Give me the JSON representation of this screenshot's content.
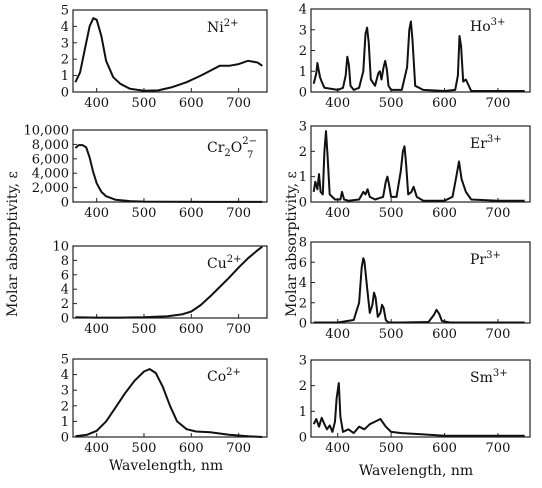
{
  "figure": {
    "left_ylabel": "Molar absorptivity, ε",
    "right_ylabel": "Molar absorptivity, ε",
    "left_xlabel": "Wavelength, nm",
    "right_xlabel": "Wavelength, nm"
  },
  "chart_data": [
    {
      "type": "line",
      "column": "left",
      "row": 0,
      "label": "Ni",
      "label_sup": "2+",
      "xlim": [
        350,
        760
      ],
      "ylim": [
        0,
        5
      ],
      "xticks": [
        400,
        500,
        600,
        700
      ],
      "yticks": [
        0,
        1,
        2,
        3,
        4,
        5
      ],
      "ytick_labels": [
        "0",
        "1",
        "2",
        "3",
        "4",
        "5"
      ],
      "show_xtick_labels": true,
      "x": [
        355,
        365,
        375,
        385,
        393,
        400,
        410,
        420,
        435,
        450,
        470,
        500,
        530,
        560,
        590,
        620,
        640,
        660,
        680,
        700,
        720,
        740,
        750
      ],
      "y": [
        0.6,
        1.2,
        2.6,
        4.0,
        4.5,
        4.4,
        3.4,
        1.9,
        0.9,
        0.5,
        0.2,
        0.08,
        0.1,
        0.3,
        0.6,
        1.0,
        1.3,
        1.6,
        1.6,
        1.7,
        1.9,
        1.8,
        1.6
      ]
    },
    {
      "type": "line",
      "column": "left",
      "row": 1,
      "label": "Cr",
      "label_sub1": "2",
      "label_mid": "O",
      "label_sup": "2−",
      "label_sub2": "7",
      "xlim": [
        350,
        760
      ],
      "ylim": [
        0,
        10000
      ],
      "xticks": [
        400,
        500,
        600,
        700
      ],
      "yticks": [
        0,
        2000,
        4000,
        6000,
        8000,
        10000
      ],
      "ytick_labels": [
        "0",
        "2,000",
        "4,000",
        "6,000",
        "8,000",
        "10,000"
      ],
      "show_xtick_labels": true,
      "x": [
        355,
        362,
        370,
        378,
        385,
        392,
        400,
        410,
        420,
        440,
        470,
        500,
        560,
        650,
        750
      ],
      "y": [
        7500,
        7900,
        7900,
        7600,
        6200,
        4300,
        2600,
        1400,
        800,
        300,
        120,
        50,
        30,
        20,
        20
      ]
    },
    {
      "type": "line",
      "column": "left",
      "row": 2,
      "label": "Cu",
      "label_sup": "2+",
      "xlim": [
        350,
        760
      ],
      "ylim": [
        0,
        10
      ],
      "xticks": [
        400,
        500,
        600,
        700
      ],
      "yticks": [
        0,
        2,
        4,
        6,
        8,
        10
      ],
      "ytick_labels": [
        "0",
        "2",
        "4",
        "6",
        "8",
        "10"
      ],
      "show_xtick_labels": true,
      "x": [
        355,
        400,
        450,
        500,
        550,
        580,
        600,
        620,
        640,
        660,
        680,
        700,
        720,
        740,
        750
      ],
      "y": [
        0.1,
        0.05,
        0.05,
        0.1,
        0.25,
        0.5,
        0.9,
        1.8,
        3.0,
        4.3,
        5.6,
        7.0,
        8.3,
        9.4,
        9.9
      ]
    },
    {
      "type": "line",
      "column": "left",
      "row": 3,
      "label": "Co",
      "label_sup": "2+",
      "xlim": [
        350,
        760
      ],
      "ylim": [
        0,
        5
      ],
      "xticks": [
        400,
        500,
        600,
        700
      ],
      "yticks": [
        0,
        1,
        2,
        3,
        4,
        5
      ],
      "ytick_labels": [
        "0",
        "1",
        "2",
        "3",
        "4",
        "5"
      ],
      "show_xtick_labels": true,
      "x": [
        355,
        380,
        400,
        420,
        440,
        460,
        480,
        500,
        512,
        525,
        540,
        555,
        570,
        590,
        610,
        640,
        680,
        720,
        750
      ],
      "y": [
        0.05,
        0.15,
        0.4,
        1.0,
        1.9,
        2.8,
        3.6,
        4.2,
        4.35,
        4.1,
        3.2,
        2.0,
        1.0,
        0.5,
        0.35,
        0.3,
        0.15,
        0.05,
        0.0
      ]
    },
    {
      "type": "line",
      "column": "right",
      "row": 0,
      "label": "Ho",
      "label_sup": "3+",
      "xlim": [
        350,
        760
      ],
      "ylim": [
        0,
        4
      ],
      "xticks": [
        400,
        500,
        600,
        700
      ],
      "yticks": [
        0,
        1,
        2,
        3,
        4
      ],
      "ytick_labels": [
        "0",
        "1",
        "2",
        "3",
        "4"
      ],
      "show_xtick_labels": true,
      "x": [
        355,
        360,
        362,
        364,
        367,
        370,
        375,
        400,
        410,
        415,
        418,
        421,
        424,
        430,
        440,
        448,
        452,
        455,
        458,
        462,
        470,
        476,
        479,
        482,
        486,
        489,
        492,
        495,
        500,
        520,
        530,
        534,
        537,
        540,
        545,
        560,
        600,
        620,
        625,
        628,
        631,
        635,
        640,
        650,
        700,
        750
      ],
      "y": [
        0.4,
        0.9,
        1.4,
        1.1,
        0.7,
        0.5,
        0.2,
        0.1,
        0.2,
        0.8,
        1.7,
        1.3,
        0.3,
        0.1,
        0.2,
        1.0,
        2.8,
        3.1,
        2.4,
        0.6,
        0.3,
        0.9,
        1.0,
        0.6,
        1.2,
        1.5,
        1.1,
        0.3,
        0.1,
        0.1,
        1.2,
        3.0,
        3.4,
        2.5,
        0.3,
        0.1,
        0.05,
        0.1,
        0.8,
        2.7,
        2.2,
        0.5,
        0.6,
        0.05,
        0.05,
        0.05
      ]
    },
    {
      "type": "line",
      "column": "right",
      "row": 1,
      "label": "Er",
      "label_sup": "3+",
      "xlim": [
        350,
        760
      ],
      "ylim": [
        0,
        3
      ],
      "xticks": [
        400,
        500,
        600,
        700
      ],
      "yticks": [
        0,
        1,
        2,
        3
      ],
      "ytick_labels": [
        "0",
        "1",
        "2",
        "3"
      ],
      "show_xtick_labels": true,
      "x": [
        355,
        358,
        362,
        365,
        368,
        372,
        375,
        378,
        381,
        385,
        395,
        405,
        408,
        412,
        420,
        440,
        448,
        452,
        456,
        460,
        470,
        485,
        490,
        493,
        496,
        500,
        510,
        518,
        522,
        525,
        528,
        532,
        538,
        542,
        548,
        560,
        600,
        615,
        622,
        627,
        632,
        640,
        650,
        700,
        750
      ],
      "y": [
        0.4,
        0.8,
        0.5,
        1.1,
        0.4,
        0.3,
        2.0,
        2.8,
        1.8,
        0.3,
        0.1,
        0.1,
        0.4,
        0.1,
        0.05,
        0.1,
        0.4,
        0.3,
        0.5,
        0.2,
        0.1,
        0.2,
        0.8,
        1.0,
        0.7,
        0.2,
        0.2,
        1.2,
        2.0,
        2.2,
        1.5,
        0.3,
        0.4,
        0.6,
        0.2,
        0.05,
        0.05,
        0.2,
        1.0,
        1.6,
        0.9,
        0.4,
        0.1,
        0.05,
        0.05
      ]
    },
    {
      "type": "line",
      "column": "right",
      "row": 2,
      "label": "Pr",
      "label_sup": "3+",
      "xlim": [
        350,
        760
      ],
      "ylim": [
        0,
        8
      ],
      "xticks": [
        400,
        500,
        600,
        700
      ],
      "yticks": [
        0,
        2,
        4,
        6,
        8
      ],
      "ytick_labels": [
        "0",
        "2",
        "4",
        "6",
        "8"
      ],
      "show_xtick_labels": true,
      "x": [
        355,
        400,
        430,
        440,
        445,
        448,
        450,
        455,
        460,
        465,
        468,
        471,
        475,
        480,
        483,
        486,
        490,
        495,
        520,
        570,
        580,
        585,
        590,
        595,
        610,
        700,
        750
      ],
      "y": [
        0.05,
        0.05,
        0.3,
        2.0,
        5.5,
        6.4,
        6.1,
        3.5,
        1.0,
        1.8,
        3.0,
        2.5,
        0.6,
        1.0,
        1.8,
        1.5,
        0.3,
        0.05,
        0.05,
        0.1,
        0.8,
        1.3,
        0.9,
        0.2,
        0.05,
        0.05,
        0.05
      ]
    },
    {
      "type": "line",
      "column": "right",
      "row": 3,
      "label": "Sm",
      "label_sup": "3+",
      "xlim": [
        350,
        760
      ],
      "ylim": [
        0,
        3
      ],
      "xticks": [
        400,
        500,
        600,
        700
      ],
      "yticks": [
        0,
        1,
        2,
        3
      ],
      "ytick_labels": [
        "0",
        "1",
        "2",
        "3"
      ],
      "show_xtick_labels": true,
      "x": [
        355,
        360,
        365,
        370,
        375,
        380,
        385,
        390,
        395,
        398,
        402,
        405,
        410,
        420,
        430,
        440,
        450,
        460,
        470,
        480,
        490,
        500,
        520,
        560,
        600,
        650,
        700,
        750
      ],
      "y": [
        0.5,
        0.7,
        0.4,
        0.75,
        0.5,
        0.3,
        0.45,
        0.2,
        0.6,
        1.5,
        2.1,
        0.8,
        0.2,
        0.3,
        0.15,
        0.4,
        0.3,
        0.5,
        0.6,
        0.7,
        0.4,
        0.2,
        0.15,
        0.1,
        0.05,
        0.05,
        0.05,
        0.05
      ]
    }
  ]
}
